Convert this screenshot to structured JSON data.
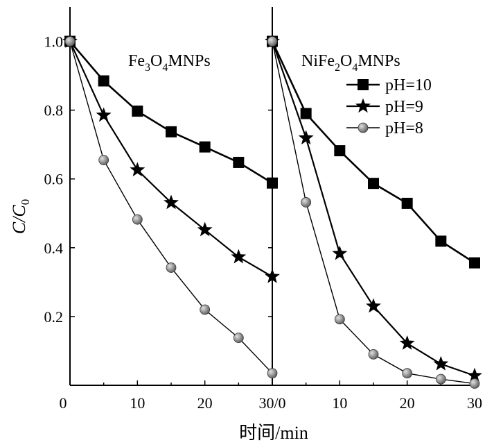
{
  "chart_data": {
    "type": "line",
    "ylabel_main": "C/C",
    "ylabel_sub": "0",
    "xlabel": "时间/min",
    "ylim": [
      0,
      1.1
    ],
    "y_ticks": [
      0.2,
      0.4,
      0.6,
      0.8,
      1.0
    ],
    "y_tick_labels": [
      "0.2",
      "0.4",
      "0.6",
      "0.8",
      "1.0"
    ],
    "x_tick_labels": [
      "0",
      "10",
      "20",
      "30/0",
      "10",
      "20",
      "30"
    ],
    "panels": [
      {
        "title_parts": [
          {
            "t": "Fe",
            "sub": false
          },
          {
            "t": "3",
            "sub": true
          },
          {
            "t": "O",
            "sub": false
          },
          {
            "t": "4",
            "sub": true
          },
          {
            "t": "MNPs",
            "sub": false
          }
        ],
        "xlim": [
          0,
          30
        ],
        "series": [
          {
            "name": "pH=10",
            "marker": "square",
            "x": [
              0,
              5,
              10,
              15,
              20,
              25,
              30
            ],
            "y": [
              1.0,
              0.885,
              0.797,
              0.737,
              0.693,
              0.648,
              0.588
            ]
          },
          {
            "name": "pH=9",
            "marker": "star",
            "x": [
              0,
              5,
              10,
              15,
              20,
              25,
              30
            ],
            "y": [
              1.0,
              0.785,
              0.626,
              0.531,
              0.452,
              0.373,
              0.316
            ]
          },
          {
            "name": "pH=8",
            "marker": "circle",
            "x": [
              0,
              5,
              10,
              15,
              20,
              25,
              30
            ],
            "y": [
              1.0,
              0.655,
              0.482,
              0.342,
              0.22,
              0.138,
              0.035
            ]
          }
        ]
      },
      {
        "title_parts": [
          {
            "t": "NiFe",
            "sub": false
          },
          {
            "t": "2",
            "sub": true
          },
          {
            "t": "O",
            "sub": false
          },
          {
            "t": "4",
            "sub": true
          },
          {
            "t": "MNPs",
            "sub": false
          }
        ],
        "xlim": [
          0,
          30
        ],
        "series": [
          {
            "name": "pH=10",
            "marker": "square",
            "x": [
              0,
              5,
              10,
              15,
              20,
              25,
              30
            ],
            "y": [
              1.0,
              0.79,
              0.682,
              0.587,
              0.529,
              0.419,
              0.356
            ]
          },
          {
            "name": "pH=9",
            "marker": "star",
            "x": [
              0,
              5,
              10,
              15,
              20,
              25,
              30
            ],
            "y": [
              1.0,
              0.719,
              0.383,
              0.23,
              0.122,
              0.062,
              0.028
            ]
          },
          {
            "name": "pH=8",
            "marker": "circle",
            "x": [
              0,
              5,
              10,
              15,
              20,
              25,
              30
            ],
            "y": [
              1.0,
              0.532,
              0.192,
              0.09,
              0.035,
              0.018,
              0.005
            ]
          }
        ]
      }
    ],
    "legend": {
      "placement": "top-right",
      "entries": [
        {
          "name": "pH=10",
          "marker": "square"
        },
        {
          "name": "pH=9",
          "marker": "star"
        },
        {
          "name": "pH=8",
          "marker": "circle"
        }
      ]
    },
    "colors": {
      "line": "#000000",
      "circle_fill": "#6e6e6e",
      "circle_highlight": "#d8d8d8"
    },
    "grid": false
  }
}
